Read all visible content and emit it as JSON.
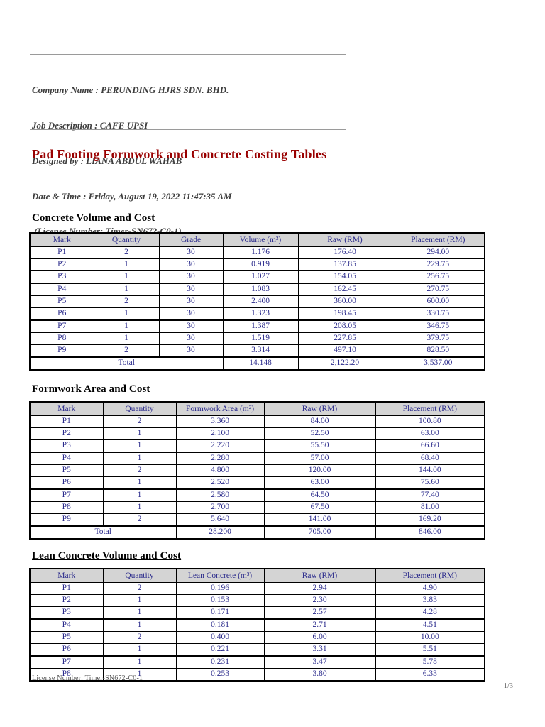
{
  "document": {
    "header_lines": [
      "Company Name : PERUNDING HJRS SDN. BHD.",
      "Job Description : CAFE UPSI",
      "Designed by : LIANA ABDUL WAHAB",
      "Date & Time : Friday, August 19, 2022 11:47:35 AM",
      " (License Number: Timer-SN672-C0-1)"
    ],
    "title": "Pad Footing Formwork and Concrete Costing Tables",
    "footer_license": "License Number: Timer-SN672-C0-1",
    "page_indicator": "1/3"
  },
  "tables": [
    {
      "heading": "Concrete Volume and Cost",
      "columns": [
        "Mark",
        "Quantity",
        "Grade",
        "Volume (m³)",
        "Raw (RM)",
        "Placement (RM)"
      ],
      "rows": [
        [
          "P1",
          "2",
          "30",
          "1.176",
          "176.40",
          "294.00"
        ],
        [
          "P2",
          "1",
          "30",
          "0.919",
          "137.85",
          "229.75"
        ],
        [
          "P3",
          "1",
          "30",
          "1.027",
          "154.05",
          "256.75"
        ],
        [
          "P4",
          "1",
          "30",
          "1.083",
          "162.45",
          "270.75"
        ],
        [
          "P5",
          "2",
          "30",
          "2.400",
          "360.00",
          "600.00"
        ],
        [
          "P6",
          "1",
          "30",
          "1.323",
          "198.45",
          "330.75"
        ],
        [
          "P7",
          "1",
          "30",
          "1.387",
          "208.05",
          "346.75"
        ],
        [
          "P8",
          "1",
          "30",
          "1.519",
          "227.85",
          "379.75"
        ],
        [
          "P9",
          "2",
          "30",
          "3.314",
          "497.10",
          "828.50"
        ]
      ],
      "total": {
        "label": "Total",
        "label_span": 3,
        "values": [
          "14.148",
          "2,122.20",
          "3,537.00"
        ]
      }
    },
    {
      "heading": "Formwork Area and Cost",
      "columns": [
        "Mark",
        "Quantity",
        "Formwork Area (m²)",
        "Raw (RM)",
        "Placement (RM)"
      ],
      "rows": [
        [
          "P1",
          "2",
          "3.360",
          "84.00",
          "100.80"
        ],
        [
          "P2",
          "1",
          "2.100",
          "52.50",
          "63.00"
        ],
        [
          "P3",
          "1",
          "2.220",
          "55.50",
          "66.60"
        ],
        [
          "P4",
          "1",
          "2.280",
          "57.00",
          "68.40"
        ],
        [
          "P5",
          "2",
          "4.800",
          "120.00",
          "144.00"
        ],
        [
          "P6",
          "1",
          "2.520",
          "63.00",
          "75.60"
        ],
        [
          "P7",
          "1",
          "2.580",
          "64.50",
          "77.40"
        ],
        [
          "P8",
          "1",
          "2.700",
          "67.50",
          "81.00"
        ],
        [
          "P9",
          "2",
          "5.640",
          "141.00",
          "169.20"
        ]
      ],
      "total": {
        "label": "Total",
        "label_span": 2,
        "values": [
          "28.200",
          "705.00",
          "846.00"
        ]
      }
    },
    {
      "heading": "Lean Concrete Volume and Cost",
      "columns": [
        "Mark",
        "Quantity",
        "Lean Concrete (m³)",
        "Raw (RM)",
        "Placement (RM)"
      ],
      "rows": [
        [
          "P1",
          "2",
          "0.196",
          "2.94",
          "4.90"
        ],
        [
          "P2",
          "1",
          "0.153",
          "2.30",
          "3.83"
        ],
        [
          "P3",
          "1",
          "0.171",
          "2.57",
          "4.28"
        ],
        [
          "P4",
          "1",
          "0.181",
          "2.71",
          "4.51"
        ],
        [
          "P5",
          "2",
          "0.400",
          "6.00",
          "10.00"
        ],
        [
          "P6",
          "1",
          "0.221",
          "3.31",
          "5.51"
        ],
        [
          "P7",
          "1",
          "0.231",
          "3.47",
          "5.78"
        ],
        [
          "P8",
          "1",
          "0.253",
          "3.80",
          "6.33"
        ]
      ],
      "total": null
    }
  ],
  "colors": {
    "title_red": "#990000",
    "table_text_navy": "#2b2b8c",
    "header_row_bg": "#d4d4d4",
    "rule_gray": "#9a9a9a",
    "border_black": "#000000"
  }
}
